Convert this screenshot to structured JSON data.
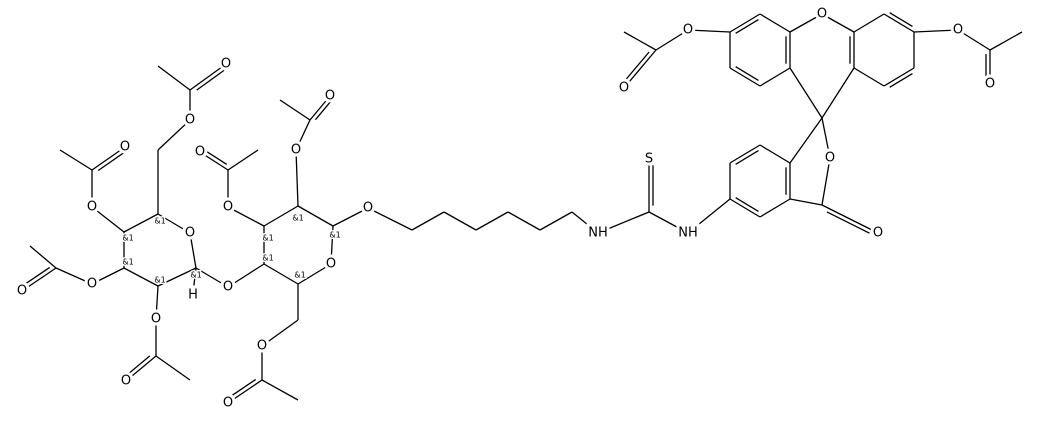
{
  "atoms": [
    "O",
    "O",
    "O",
    "O",
    "O",
    "O",
    "O",
    "S",
    "NH",
    "NH",
    "O",
    "O",
    "O",
    "O",
    "O",
    "O",
    "O",
    "O",
    "O",
    "O",
    "H",
    "O",
    "O",
    "O",
    "O",
    "O",
    "O",
    "O",
    "O"
  ],
  "stereo": [
    "&1",
    "&1",
    "&1",
    "&1",
    "&1",
    "&1",
    "&1",
    "&1",
    "&1",
    "&1"
  ]
}
